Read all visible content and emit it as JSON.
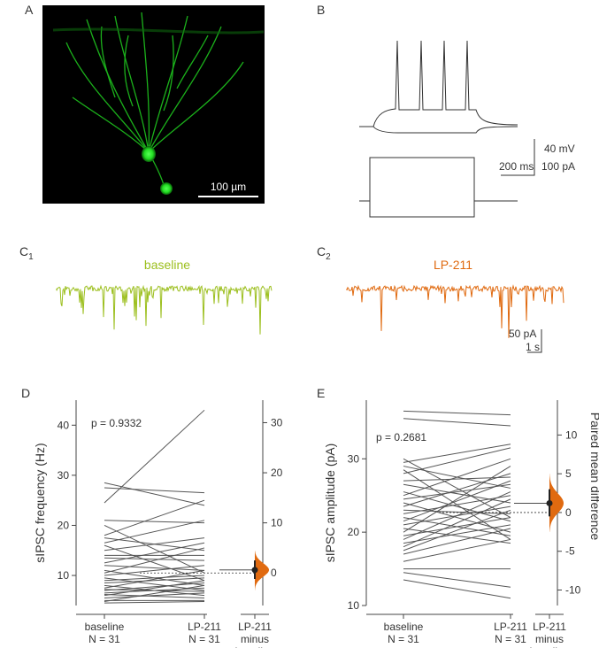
{
  "panels": {
    "A": {
      "label": "A",
      "scalebar": "100 µm"
    },
    "B": {
      "label": "B",
      "scalebar_voltage": "40 mV",
      "scalebar_time": "200 ms",
      "scalebar_current": "100 pA"
    },
    "C1": {
      "label": "C",
      "sub": "1",
      "title": "baseline",
      "color": "#9cbf1e"
    },
    "C2": {
      "label": "C",
      "sub": "2",
      "title": "LP-211",
      "color": "#e06a10",
      "scalebar_current": "50 pA",
      "scalebar_time": "1 s"
    },
    "D": {
      "label": "D",
      "pvalue": "p = 0.9332"
    },
    "E": {
      "label": "E",
      "pvalue": "p = 0.2681"
    }
  },
  "colors": {
    "line": "#555555",
    "delta_fill": "#e06a10",
    "neuron": "#22dd22",
    "baseline_trace": "#9cbf1e",
    "lp211_trace": "#e06a10"
  },
  "chart_data": [
    {
      "type": "line",
      "panel": "D",
      "ylabel": "sIPSC frequency (Hz)",
      "ylabel_right": "",
      "yticks": [
        "10",
        "20",
        "30",
        "40"
      ],
      "ylim": [
        4,
        45
      ],
      "right_yticks": [
        "0",
        "10",
        "20",
        "30"
      ],
      "right_ylim": [
        -6.5,
        34.5
      ],
      "groups": [
        {
          "name": "baseline",
          "n": "N = 31"
        },
        {
          "name": "LP-211",
          "n": "N = 31"
        }
      ],
      "delta_label": [
        "LP-211",
        "minus",
        "baseline"
      ],
      "paired_values": [
        [
          28.5,
          24.0
        ],
        [
          27.5,
          26.5
        ],
        [
          24.5,
          43.0
        ],
        [
          21.0,
          20.5
        ],
        [
          20.0,
          10.5
        ],
        [
          18.0,
          25.0
        ],
        [
          17.5,
          15.0
        ],
        [
          16.5,
          21.0
        ],
        [
          16.0,
          9.0
        ],
        [
          15.0,
          17.5
        ],
        [
          14.0,
          14.0
        ],
        [
          13.5,
          13.0
        ],
        [
          12.5,
          16.5
        ],
        [
          12.0,
          11.0
        ],
        [
          11.0,
          8.0
        ],
        [
          10.5,
          15.5
        ],
        [
          10.0,
          12.0
        ],
        [
          9.5,
          7.0
        ],
        [
          9.0,
          10.0
        ],
        [
          8.5,
          9.5
        ],
        [
          8.0,
          6.0
        ],
        [
          7.5,
          11.0
        ],
        [
          7.0,
          8.5
        ],
        [
          6.5,
          7.5
        ],
        [
          6.0,
          9.0
        ],
        [
          5.5,
          6.5
        ],
        [
          5.0,
          5.0
        ],
        [
          4.8,
          8.0
        ],
        [
          4.5,
          4.8
        ],
        [
          7.2,
          6.8
        ],
        [
          6.2,
          5.5
        ]
      ],
      "mean_difference": 0.6,
      "ci": [
        -1.2,
        2.5
      ],
      "dist_extent": [
        -3.5,
        4.5
      ]
    },
    {
      "type": "line",
      "panel": "E",
      "ylabel": "sIPSC amplitude (pA)",
      "ylabel_right": "Paired mean difference",
      "yticks": [
        "10",
        "20",
        "30"
      ],
      "ylim": [
        10,
        38
      ],
      "right_yticks": [
        "-10",
        "-5",
        "0",
        "5",
        "10"
      ],
      "right_ylim": [
        -12,
        14.5
      ],
      "groups": [
        {
          "name": "baseline",
          "n": "N = 31"
        },
        {
          "name": "LP-211",
          "n": "N = 31"
        }
      ],
      "delta_label": [
        "LP-211",
        "minus",
        "baseline"
      ],
      "paired_values": [
        [
          36.5,
          36.0
        ],
        [
          35.5,
          34.5
        ],
        [
          30.0,
          22.0
        ],
        [
          29.5,
          32.0
        ],
        [
          29.0,
          26.0
        ],
        [
          28.5,
          19.0
        ],
        [
          28.0,
          31.5
        ],
        [
          27.0,
          27.5
        ],
        [
          26.5,
          24.0
        ],
        [
          25.5,
          21.5
        ],
        [
          25.0,
          30.0
        ],
        [
          24.5,
          26.5
        ],
        [
          24.0,
          20.0
        ],
        [
          23.5,
          28.0
        ],
        [
          23.0,
          22.5
        ],
        [
          22.5,
          25.0
        ],
        [
          22.0,
          19.5
        ],
        [
          21.5,
          27.0
        ],
        [
          21.0,
          23.5
        ],
        [
          20.5,
          18.5
        ],
        [
          20.0,
          29.0
        ],
        [
          19.5,
          22.0
        ],
        [
          19.0,
          25.5
        ],
        [
          18.5,
          21.0
        ],
        [
          18.0,
          24.5
        ],
        [
          17.5,
          23.0
        ],
        [
          17.0,
          20.5
        ],
        [
          16.0,
          19.0
        ],
        [
          15.0,
          15.0
        ],
        [
          14.5,
          12.5
        ],
        [
          13.5,
          11.0
        ]
      ],
      "mean_difference": 1.2,
      "ci": [
        -0.5,
        3.0
      ],
      "dist_extent": [
        -2.5,
        5.0
      ]
    }
  ]
}
